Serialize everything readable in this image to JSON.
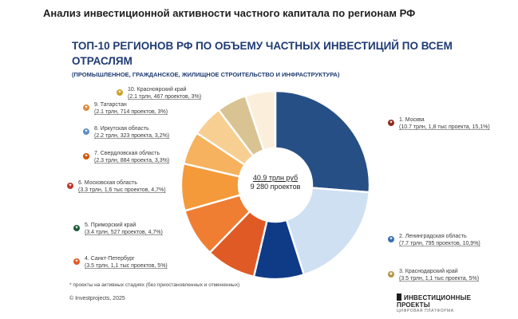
{
  "header": {
    "title": "Анализ инвестиционной активности частного капитала по регионам РФ"
  },
  "chart_data": {
    "type": "pie",
    "title": "ТОП-10 РЕГИОНОВ РФ ПО ОБЪЕМУ ЧАСТНЫХ ИНВЕСТИЦИЙ ПО ВСЕМ ОТРАСЛЯМ",
    "subtitle": "(ПРОМЫШЛЕННОЕ, ГРАЖДАНСКОЕ, ЖИЛИЩНОЕ СТРОИТЕЛЬСТВО И ИНФРАСТРУКТУРА)",
    "center_total": {
      "sum": "40.9 трлн руб",
      "projects": "9 280 проектов"
    },
    "values": [
      10.7,
      7.7,
      3.5,
      3.5,
      3.4,
      3.3,
      2.3,
      2.2,
      2.1,
      2.1
    ],
    "slices": [
      {
        "name": "1. Москва",
        "stats": "(10.7 трлн, 1,8 тыс проекта, 15,1%)",
        "value": 10.7,
        "color": "#264f86",
        "icon": "moscow-emblem-icon"
      },
      {
        "name": "2. Ленинградская область",
        "stats": "(7.7 трлн, 795 проектов, 10,9%)",
        "value": 7.7,
        "color": "#cfe0f3",
        "icon": "leningrad-emblem-icon"
      },
      {
        "name": "3. Краснодарский край",
        "stats": "(3.5 трлн, 1,1 тыс проекта, 5%)",
        "value": 3.5,
        "color": "#0f3a86",
        "icon": "krasnodar-emblem-icon"
      },
      {
        "name": "4. Санкт-Петербург",
        "stats": "(3.5 трлн, 1,1 тыс проектов, 5%)",
        "value": 3.5,
        "color": "#e05a26",
        "icon": "spb-emblem-icon"
      },
      {
        "name": "5. Приморский край",
        "stats": "(3.4 трлн, 527 проектов, 4,7%)",
        "value": 3.4,
        "color": "#ef7d32",
        "icon": "primorye-emblem-icon"
      },
      {
        "name": "6. Московская область",
        "stats": "(3.3 трлн, 1,6 тыс проектов, 4,7%)",
        "value": 3.3,
        "color": "#f49a3b",
        "icon": "moscow-oblast-emblem-icon"
      },
      {
        "name": "7. Свердловская область",
        "stats": "(2.3 трлн, 884 проекта, 3,3%)",
        "value": 2.3,
        "color": "#f6b25e",
        "icon": "sverdlovsk-emblem-icon"
      },
      {
        "name": "8. Иркутская область",
        "stats": "(2.2 трлн, 323 проекта, 3,2%)",
        "value": 2.2,
        "color": "#f8cf93",
        "icon": "irkutsk-emblem-icon"
      },
      {
        "name": "9. Татарстан",
        "stats": "(2.1 трлн, 714 проектов, 3%)",
        "value": 2.1,
        "color": "#d9c392",
        "icon": "tatarstan-emblem-icon"
      },
      {
        "name": "10. Красноярский край",
        "stats": "(2.1 трлн, 467 проектов, 3%)",
        "value": 2.1,
        "color": "#fbefdc",
        "icon": "krasnoyarsk-emblem-icon"
      }
    ]
  },
  "footer": {
    "footnote": "* проекты на активных стадиях (без приостановленных и отмененных)",
    "copyright": "© Investprojects, 2025",
    "brand": "ИНВЕСТИЦИОННЫЕ ПРОЕКТЫ",
    "brand_sub": "ЦИФРОВАЯ ПЛАТФОРМА"
  }
}
